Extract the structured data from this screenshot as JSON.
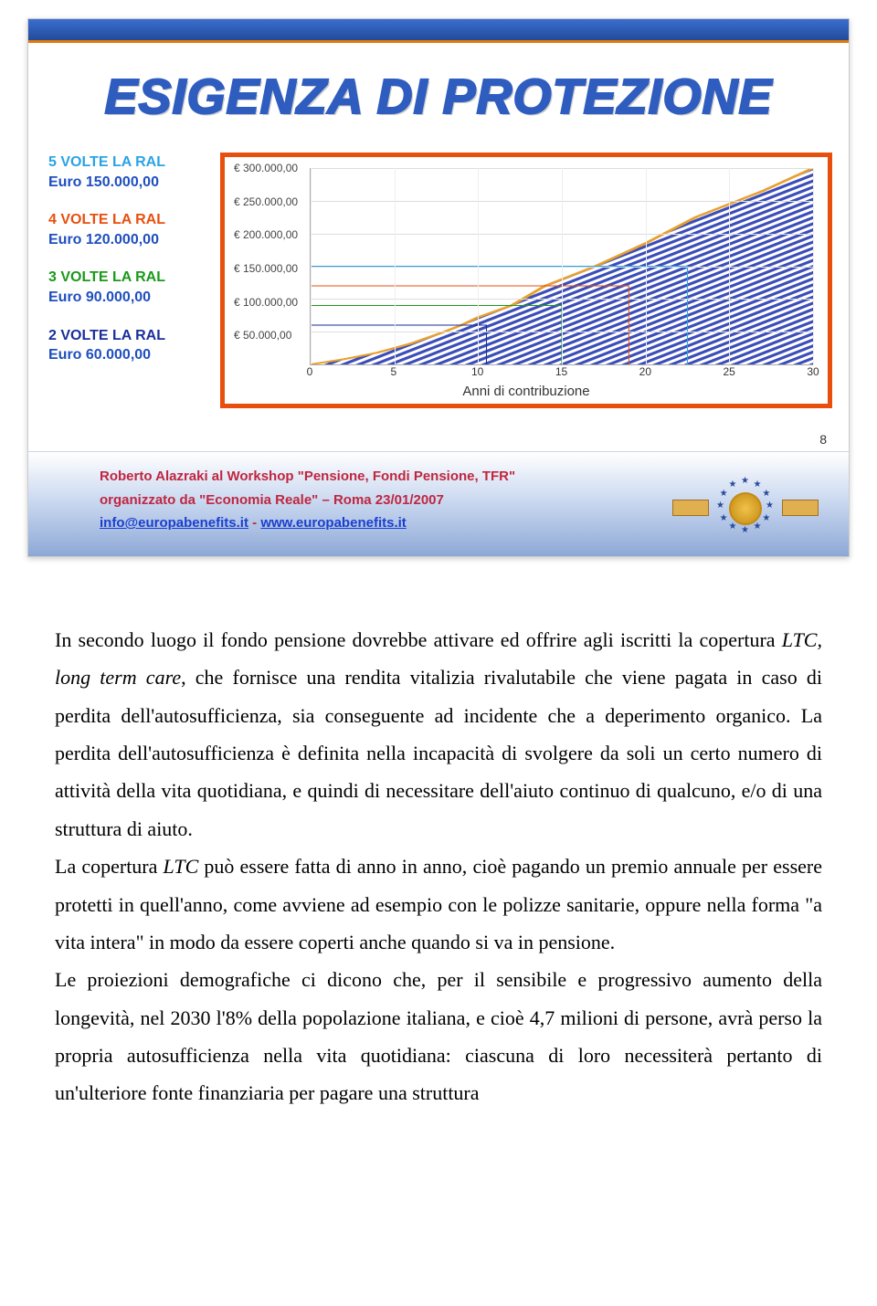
{
  "slide": {
    "title": "ESIGENZA DI PROTEZIONE",
    "page_number": "8",
    "top_bar_gradient": [
      "#3a6fcf",
      "#234a9a"
    ],
    "top_bar_accent": "#e47a0a",
    "chart_frame_border": "#e84f0e"
  },
  "legend": [
    {
      "label": "5 VOLTE LA RAL",
      "value": "Euro 150.000,00",
      "label_color": "#29a3e6",
      "value_color": "#1f4fbf"
    },
    {
      "label": "4 VOLTE LA RAL",
      "value": "Euro 120.000,00",
      "label_color": "#e84f0e",
      "value_color": "#1f4fbf"
    },
    {
      "label": "3 VOLTE LA RAL",
      "value": "Euro 90.000,00",
      "label_color": "#1a9a1a",
      "value_color": "#1f4fbf"
    },
    {
      "label": "2 VOLTE LA RAL",
      "value": "Euro 60.000,00",
      "label_color": "#1a2f9a",
      "value_color": "#1f4fbf"
    }
  ],
  "chart": {
    "type": "area",
    "xaxis_title": "Anni di contribuzione",
    "x_ticks": [
      0,
      5,
      10,
      15,
      20,
      25,
      30
    ],
    "y_ticks": [
      "€ 50.000,00",
      "€ 100.000,00",
      "€ 150.000,00",
      "€ 200.000,00",
      "€ 250.000,00",
      "€ 300.000,00"
    ],
    "ylim": [
      0,
      300000
    ],
    "xlim": [
      0,
      30
    ],
    "area_fill": "#3b4db8",
    "area_stroke": "#e8a030",
    "hatch": true,
    "area_points_y": [
      0,
      8000,
      18000,
      32000,
      50000,
      60000,
      72000,
      90000,
      105000,
      120000,
      135000,
      150000,
      185000,
      225000,
      265000,
      300000
    ],
    "area_points_x": [
      0,
      2,
      4,
      6,
      8,
      9,
      10,
      12,
      13,
      14,
      15.5,
      17,
      20,
      23,
      27,
      30
    ],
    "step_lines": [
      {
        "color": "#1a2f9a",
        "y": 60000,
        "x_drop": 10.5,
        "stroke_width": 3
      },
      {
        "color": "#1a9a1a",
        "y": 90000,
        "x_drop": 15.0,
        "stroke_width": 3
      },
      {
        "color": "#e84f0e",
        "y": 120000,
        "x_drop": 19.0,
        "stroke_width": 3
      },
      {
        "color": "#29a3e6",
        "y": 150000,
        "x_drop": 22.5,
        "stroke_width": 3
      }
    ],
    "background_color": "#ffffff",
    "grid_color": "#dddddd",
    "tick_fontsize": 12,
    "axis_title_fontsize": 15
  },
  "footer": {
    "line1": "Roberto Alazraki al Workshop \"Pensione, Fondi Pensione, TFR\"",
    "line2": "organizzato da \"Economia Reale\" – Roma 23/01/2007",
    "link1_text": "info@europabenefits.it",
    "link_sep": "   -   ",
    "link2_text": "www.europabenefits.it",
    "text_color": "#c02640",
    "gradient": [
      "#ffffff",
      "#8da8d6"
    ]
  },
  "body": {
    "p1": "In secondo luogo il fondo pensione dovrebbe attivare ed offrire agli iscritti la copertura <em>LTC, long term care</em>, che fornisce una rendita vitalizia rivalutabile che viene pagata in caso di perdita dell'autosufficienza, sia conseguente ad incidente che a deperimento organico. La perdita dell'autosufficienza è definita nella incapacità di svolgere da soli un certo numero di attività della vita quotidiana, e quindi di necessitare dell'aiuto continuo di qualcuno, e/o di una struttura di aiuto.",
    "p2": "La copertura <em>LTC</em> può essere fatta di anno in anno, cioè pagando un premio annuale per essere protetti in quell'anno, come avviene ad esempio con le polizze sanitarie, oppure nella forma \"a vita intera\" in modo da essere coperti anche quando si va in pensione.",
    "p3": "Le proiezioni demografiche ci dicono che, per il sensibile e progressivo aumento della longevità, nel 2030 l'8% della popolazione italiana, e cioè 4,7 milioni di persone, avrà perso la propria autosufficienza nella vita quotidiana: ciascuna di loro necessiterà pertanto di un'ulteriore fonte finanziaria per pagare una struttura"
  }
}
